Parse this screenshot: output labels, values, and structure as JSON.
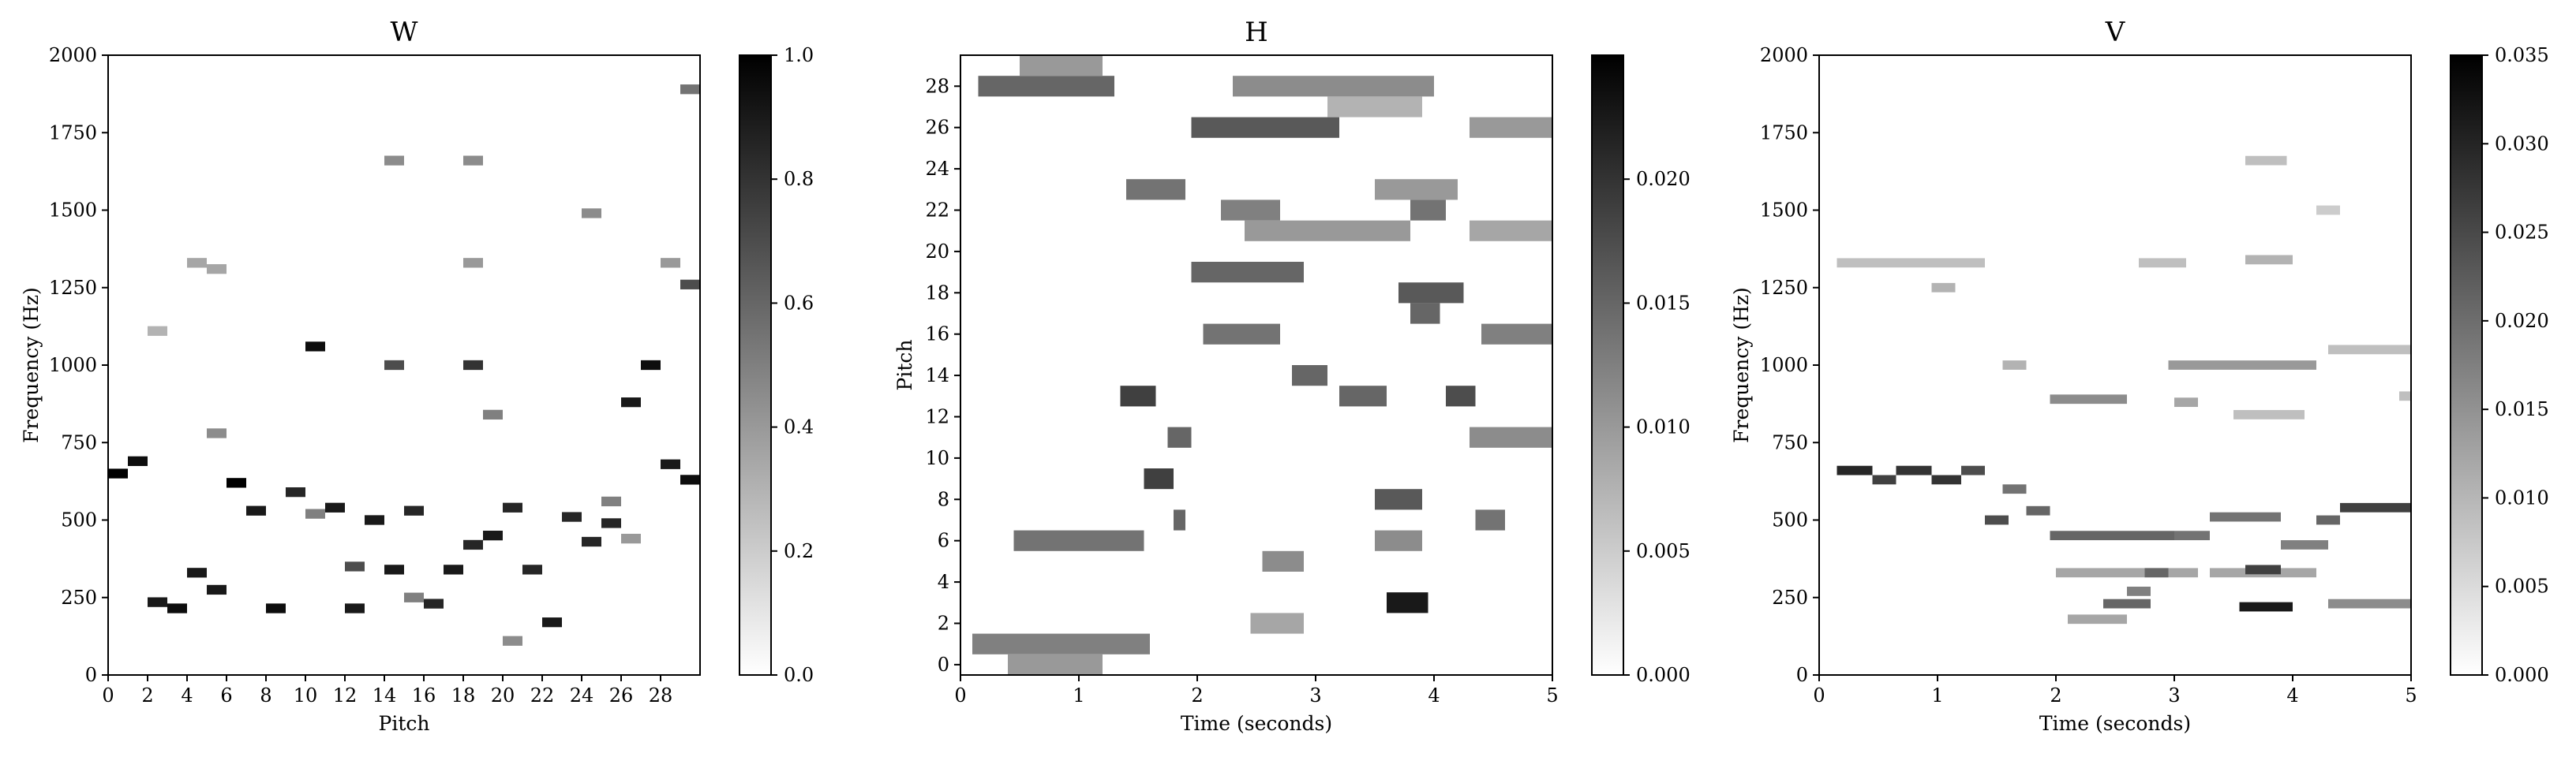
{
  "chart_data": [
    {
      "type": "heatmap",
      "title": "W",
      "xlabel": "Pitch",
      "ylabel": "Frequency (Hz)",
      "xlim": [
        0,
        30
      ],
      "ylim": [
        0,
        2000
      ],
      "x_ticks": [
        0,
        2,
        4,
        6,
        8,
        10,
        12,
        14,
        16,
        18,
        20,
        22,
        24,
        26,
        28
      ],
      "y_ticks": [
        0,
        250,
        500,
        750,
        1000,
        1250,
        1500,
        1750,
        2000
      ],
      "colorbar": {
        "min": 0.0,
        "max": 1.0,
        "ticks": [
          "0.0",
          "0.2",
          "0.4",
          "0.6",
          "0.8",
          "1.0"
        ],
        "colormap": "gray_r"
      },
      "cell_height_hz": 31.25,
      "strong_cells": [
        {
          "pitch": 0,
          "hz": 650,
          "v": 1.0
        },
        {
          "pitch": 1,
          "hz": 690,
          "v": 0.95
        },
        {
          "pitch": 2,
          "hz": 235,
          "v": 0.9
        },
        {
          "pitch": 3,
          "hz": 215,
          "v": 0.95
        },
        {
          "pitch": 4,
          "hz": 330,
          "v": 0.9
        },
        {
          "pitch": 5,
          "hz": 275,
          "v": 0.9
        },
        {
          "pitch": 6,
          "hz": 620,
          "v": 1.0
        },
        {
          "pitch": 7,
          "hz": 530,
          "v": 0.9
        },
        {
          "pitch": 8,
          "hz": 215,
          "v": 0.95
        },
        {
          "pitch": 9,
          "hz": 590,
          "v": 0.85
        },
        {
          "pitch": 10,
          "hz": 1060,
          "v": 0.95
        },
        {
          "pitch": 11,
          "hz": 540,
          "v": 0.9
        },
        {
          "pitch": 12,
          "hz": 215,
          "v": 0.9
        },
        {
          "pitch": 13,
          "hz": 500,
          "v": 0.9
        },
        {
          "pitch": 14,
          "hz": 340,
          "v": 0.9
        },
        {
          "pitch": 15,
          "hz": 530,
          "v": 0.85
        },
        {
          "pitch": 16,
          "hz": 230,
          "v": 0.85
        },
        {
          "pitch": 17,
          "hz": 340,
          "v": 0.9
        },
        {
          "pitch": 18,
          "hz": 420,
          "v": 0.85
        },
        {
          "pitch": 19,
          "hz": 450,
          "v": 0.9
        },
        {
          "pitch": 20,
          "hz": 540,
          "v": 0.85
        },
        {
          "pitch": 21,
          "hz": 340,
          "v": 0.85
        },
        {
          "pitch": 22,
          "hz": 170,
          "v": 0.9
        },
        {
          "pitch": 23,
          "hz": 510,
          "v": 0.85
        },
        {
          "pitch": 24,
          "hz": 430,
          "v": 0.85
        },
        {
          "pitch": 25,
          "hz": 490,
          "v": 0.85
        },
        {
          "pitch": 26,
          "hz": 880,
          "v": 0.9
        },
        {
          "pitch": 27,
          "hz": 1000,
          "v": 0.95
        },
        {
          "pitch": 28,
          "hz": 680,
          "v": 0.9
        },
        {
          "pitch": 29,
          "hz": 630,
          "v": 0.95
        }
      ],
      "secondary_cells": [
        {
          "pitch": 10,
          "hz": 520,
          "v": 0.5
        },
        {
          "pitch": 14,
          "hz": 1000,
          "v": 0.7
        },
        {
          "pitch": 14,
          "hz": 1660,
          "v": 0.45
        },
        {
          "pitch": 18,
          "hz": 1000,
          "v": 0.8
        },
        {
          "pitch": 18,
          "hz": 1330,
          "v": 0.4
        },
        {
          "pitch": 18,
          "hz": 1660,
          "v": 0.45
        },
        {
          "pitch": 19,
          "hz": 840,
          "v": 0.5
        },
        {
          "pitch": 20,
          "hz": 110,
          "v": 0.45
        },
        {
          "pitch": 24,
          "hz": 1490,
          "v": 0.45
        },
        {
          "pitch": 25,
          "hz": 560,
          "v": 0.5
        },
        {
          "pitch": 26,
          "hz": 440,
          "v": 0.4
        },
        {
          "pitch": 28,
          "hz": 1330,
          "v": 0.4
        },
        {
          "pitch": 29,
          "hz": 1260,
          "v": 0.7
        },
        {
          "pitch": 29,
          "hz": 1890,
          "v": 0.55
        },
        {
          "pitch": 4,
          "hz": 1330,
          "v": 0.35
        },
        {
          "pitch": 5,
          "hz": 1310,
          "v": 0.35
        },
        {
          "pitch": 5,
          "hz": 780,
          "v": 0.45
        },
        {
          "pitch": 12,
          "hz": 350,
          "v": 0.7
        },
        {
          "pitch": 2,
          "hz": 1110,
          "v": 0.3
        },
        {
          "pitch": 15,
          "hz": 250,
          "v": 0.5
        }
      ]
    },
    {
      "type": "heatmap",
      "title": "H",
      "xlabel": "Time (seconds)",
      "ylabel": "Pitch",
      "xlim": [
        0,
        5
      ],
      "ylim": [
        0,
        30
      ],
      "x_ticks": [
        0,
        1,
        2,
        3,
        4,
        5
      ],
      "y_ticks": [
        0,
        2,
        4,
        6,
        8,
        10,
        12,
        14,
        16,
        18,
        20,
        22,
        24,
        26,
        28
      ],
      "colorbar": {
        "min": 0.0,
        "max": 0.025,
        "ticks": [
          "0.000",
          "0.005",
          "0.010",
          "0.015",
          "0.020"
        ],
        "colormap": "gray_r"
      },
      "segments": [
        {
          "pitch": 28,
          "t0": 0.15,
          "t1": 1.3,
          "v": 0.6
        },
        {
          "pitch": 29,
          "t0": 0.5,
          "t1": 1.2,
          "v": 0.4
        },
        {
          "pitch": 26,
          "t0": 1.95,
          "t1": 3.2,
          "v": 0.65
        },
        {
          "pitch": 26,
          "t0": 4.3,
          "t1": 5.0,
          "v": 0.4
        },
        {
          "pitch": 28,
          "t0": 2.3,
          "t1": 4.0,
          "v": 0.45
        },
        {
          "pitch": 27,
          "t0": 3.1,
          "t1": 3.9,
          "v": 0.3
        },
        {
          "pitch": 23,
          "t0": 1.4,
          "t1": 1.9,
          "v": 0.55
        },
        {
          "pitch": 23,
          "t0": 3.5,
          "t1": 4.2,
          "v": 0.4
        },
        {
          "pitch": 22,
          "t0": 2.2,
          "t1": 2.7,
          "v": 0.5
        },
        {
          "pitch": 22,
          "t0": 3.8,
          "t1": 4.1,
          "v": 0.55
        },
        {
          "pitch": 21,
          "t0": 2.4,
          "t1": 3.8,
          "v": 0.4
        },
        {
          "pitch": 21,
          "t0": 4.3,
          "t1": 5.0,
          "v": 0.35
        },
        {
          "pitch": 19,
          "t0": 1.95,
          "t1": 2.9,
          "v": 0.6
        },
        {
          "pitch": 18,
          "t0": 3.7,
          "t1": 4.25,
          "v": 0.65
        },
        {
          "pitch": 17,
          "t0": 3.8,
          "t1": 4.05,
          "v": 0.6
        },
        {
          "pitch": 16,
          "t0": 2.05,
          "t1": 2.7,
          "v": 0.55
        },
        {
          "pitch": 16,
          "t0": 4.4,
          "t1": 5.0,
          "v": 0.5
        },
        {
          "pitch": 14,
          "t0": 2.8,
          "t1": 3.1,
          "v": 0.6
        },
        {
          "pitch": 13,
          "t0": 1.35,
          "t1": 1.65,
          "v": 0.75
        },
        {
          "pitch": 13,
          "t0": 3.2,
          "t1": 3.6,
          "v": 0.6
        },
        {
          "pitch": 13,
          "t0": 4.1,
          "t1": 4.35,
          "v": 0.7
        },
        {
          "pitch": 11,
          "t0": 1.75,
          "t1": 1.95,
          "v": 0.6
        },
        {
          "pitch": 11,
          "t0": 4.3,
          "t1": 5.0,
          "v": 0.45
        },
        {
          "pitch": 9,
          "t0": 1.55,
          "t1": 1.8,
          "v": 0.75
        },
        {
          "pitch": 8,
          "t0": 3.5,
          "t1": 3.9,
          "v": 0.65
        },
        {
          "pitch": 7,
          "t0": 1.8,
          "t1": 1.9,
          "v": 0.6
        },
        {
          "pitch": 7,
          "t0": 4.35,
          "t1": 4.6,
          "v": 0.55
        },
        {
          "pitch": 6,
          "t0": 0.45,
          "t1": 1.55,
          "v": 0.55
        },
        {
          "pitch": 6,
          "t0": 3.5,
          "t1": 3.9,
          "v": 0.45
        },
        {
          "pitch": 5,
          "t0": 2.55,
          "t1": 2.9,
          "v": 0.45
        },
        {
          "pitch": 3,
          "t0": 3.6,
          "t1": 3.95,
          "v": 0.9
        },
        {
          "pitch": 2,
          "t0": 2.45,
          "t1": 2.9,
          "v": 0.35
        },
        {
          "pitch": 1,
          "t0": 0.1,
          "t1": 1.6,
          "v": 0.5
        },
        {
          "pitch": 0,
          "t0": 0.4,
          "t1": 1.2,
          "v": 0.4
        }
      ]
    },
    {
      "type": "heatmap",
      "title": "V",
      "xlabel": "Time (seconds)",
      "ylabel": "Frequency (Hz)",
      "xlim": [
        0,
        5
      ],
      "ylim": [
        0,
        2000
      ],
      "x_ticks": [
        0,
        1,
        2,
        3,
        4,
        5
      ],
      "y_ticks": [
        0,
        250,
        500,
        750,
        1000,
        1250,
        1500,
        1750,
        2000
      ],
      "colorbar": {
        "min": 0.0,
        "max": 0.035,
        "ticks": [
          "0.000",
          "0.005",
          "0.010",
          "0.015",
          "0.020",
          "0.025",
          "0.030",
          "0.035"
        ],
        "colormap": "gray_r"
      },
      "segments": [
        {
          "hz": 660,
          "t0": 0.15,
          "t1": 0.45,
          "v": 0.85
        },
        {
          "hz": 630,
          "t0": 0.45,
          "t1": 0.65,
          "v": 0.75
        },
        {
          "hz": 660,
          "t0": 0.65,
          "t1": 0.95,
          "v": 0.8
        },
        {
          "hz": 630,
          "t0": 0.95,
          "t1": 1.2,
          "v": 0.8
        },
        {
          "hz": 660,
          "t0": 1.2,
          "t1": 1.4,
          "v": 0.7
        },
        {
          "hz": 500,
          "t0": 1.4,
          "t1": 1.6,
          "v": 0.7
        },
        {
          "hz": 600,
          "t0": 1.55,
          "t1": 1.75,
          "v": 0.55
        },
        {
          "hz": 530,
          "t0": 1.75,
          "t1": 1.95,
          "v": 0.6
        },
        {
          "hz": 450,
          "t0": 1.95,
          "t1": 3.0,
          "v": 0.6
        },
        {
          "hz": 890,
          "t0": 1.95,
          "t1": 2.6,
          "v": 0.45
        },
        {
          "hz": 450,
          "t0": 3.0,
          "t1": 3.3,
          "v": 0.55
        },
        {
          "hz": 510,
          "t0": 3.3,
          "t1": 3.9,
          "v": 0.55
        },
        {
          "hz": 420,
          "t0": 3.9,
          "t1": 4.3,
          "v": 0.5
        },
        {
          "hz": 500,
          "t0": 4.2,
          "t1": 4.4,
          "v": 0.6
        },
        {
          "hz": 540,
          "t0": 4.4,
          "t1": 5.0,
          "v": 0.75
        },
        {
          "hz": 330,
          "t0": 2.0,
          "t1": 3.2,
          "v": 0.35
        },
        {
          "hz": 330,
          "t0": 3.3,
          "t1": 4.2,
          "v": 0.35
        },
        {
          "hz": 230,
          "t0": 2.4,
          "t1": 2.8,
          "v": 0.6
        },
        {
          "hz": 220,
          "t0": 3.55,
          "t1": 4.0,
          "v": 0.9
        },
        {
          "hz": 340,
          "t0": 3.6,
          "t1": 3.9,
          "v": 0.75
        },
        {
          "hz": 330,
          "t0": 2.75,
          "t1": 2.95,
          "v": 0.6
        },
        {
          "hz": 270,
          "t0": 2.6,
          "t1": 2.8,
          "v": 0.5
        },
        {
          "hz": 180,
          "t0": 2.1,
          "t1": 2.6,
          "v": 0.35
        },
        {
          "hz": 230,
          "t0": 4.3,
          "t1": 5.0,
          "v": 0.45
        },
        {
          "hz": 1000,
          "t0": 2.95,
          "t1": 4.2,
          "v": 0.4
        },
        {
          "hz": 1050,
          "t0": 4.3,
          "t1": 5.0,
          "v": 0.25
        },
        {
          "hz": 1330,
          "t0": 0.15,
          "t1": 1.4,
          "v": 0.25
        },
        {
          "hz": 1330,
          "t0": 2.7,
          "t1": 3.1,
          "v": 0.25
        },
        {
          "hz": 1340,
          "t0": 3.6,
          "t1": 4.0,
          "v": 0.3
        },
        {
          "hz": 1250,
          "t0": 0.95,
          "t1": 1.15,
          "v": 0.3
        },
        {
          "hz": 1660,
          "t0": 3.6,
          "t1": 3.95,
          "v": 0.25
        },
        {
          "hz": 880,
          "t0": 3.0,
          "t1": 3.2,
          "v": 0.35
        },
        {
          "hz": 900,
          "t0": 4.9,
          "t1": 5.0,
          "v": 0.25
        },
        {
          "hz": 1500,
          "t0": 4.2,
          "t1": 4.4,
          "v": 0.2
        },
        {
          "hz": 840,
          "t0": 3.5,
          "t1": 4.1,
          "v": 0.25
        },
        {
          "hz": 1000,
          "t0": 1.55,
          "t1": 1.75,
          "v": 0.3
        }
      ]
    }
  ]
}
